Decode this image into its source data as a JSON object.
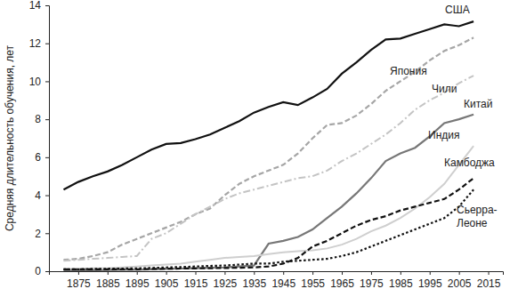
{
  "chart_data": {
    "type": "line",
    "y_label": "Средняя длительность обучения, лет",
    "x": [
      1870,
      1875,
      1880,
      1885,
      1890,
      1895,
      1900,
      1905,
      1910,
      1915,
      1920,
      1925,
      1930,
      1935,
      1940,
      1945,
      1950,
      1955,
      1960,
      1965,
      1970,
      1975,
      1980,
      1985,
      1990,
      1995,
      2000,
      2005,
      2010
    ],
    "xlim": [
      1865,
      2020
    ],
    "xticks": [
      1875,
      1885,
      1895,
      1905,
      1915,
      1925,
      1935,
      1945,
      1955,
      1965,
      1975,
      1985,
      1995,
      2005,
      2015
    ],
    "ylim": [
      0,
      14
    ],
    "yticks": [
      0,
      2,
      4,
      6,
      8,
      10,
      12,
      14
    ],
    "grid": false,
    "series": [
      {
        "name": "США",
        "color": "#111111",
        "line_style": "solid",
        "values": [
          4.3,
          4.7,
          5.0,
          5.25,
          5.6,
          6.0,
          6.4,
          6.7,
          6.75,
          6.95,
          7.2,
          7.55,
          7.9,
          8.35,
          8.65,
          8.9,
          8.75,
          9.15,
          9.6,
          10.4,
          11.0,
          11.65,
          12.2,
          12.25,
          12.5,
          12.75,
          13.0,
          12.9,
          13.15
        ]
      },
      {
        "name": "Япония",
        "color": "#a6a6a6",
        "line_style": "dashed",
        "values": [
          0.6,
          0.65,
          0.8,
          1.0,
          1.4,
          1.7,
          2.0,
          2.3,
          2.6,
          3.0,
          3.3,
          4.0,
          4.6,
          5.0,
          5.3,
          5.6,
          6.2,
          7.0,
          7.7,
          7.8,
          8.2,
          8.8,
          9.5,
          10.0,
          10.5,
          11.1,
          11.6,
          11.9,
          12.3
        ]
      },
      {
        "name": "Чили",
        "color": "#c4c4c4",
        "line_style": "dashdot",
        "values": [
          0.55,
          0.6,
          0.65,
          0.7,
          0.75,
          0.8,
          1.7,
          2.0,
          2.5,
          3.0,
          3.4,
          3.8,
          4.1,
          4.3,
          4.5,
          4.7,
          4.9,
          5.0,
          5.3,
          5.8,
          6.2,
          6.7,
          7.2,
          7.8,
          8.5,
          9.0,
          9.4,
          9.9,
          10.3
        ]
      },
      {
        "name": "Китай",
        "color": "#777777",
        "line_style": "solid",
        "values": [
          0.05,
          0.05,
          0.05,
          0.06,
          0.07,
          0.08,
          0.1,
          0.12,
          0.14,
          0.16,
          0.18,
          0.2,
          0.25,
          0.3,
          1.45,
          1.6,
          1.8,
          2.2,
          2.8,
          3.4,
          4.1,
          4.9,
          5.8,
          6.2,
          6.5,
          7.1,
          7.8,
          8.0,
          8.25
        ]
      },
      {
        "name": "Индия",
        "color": "#cfcfcf",
        "line_style": "solid",
        "values": [
          0.1,
          0.1,
          0.15,
          0.15,
          0.2,
          0.25,
          0.3,
          0.35,
          0.4,
          0.5,
          0.6,
          0.7,
          0.75,
          0.8,
          0.9,
          1.0,
          1.05,
          1.1,
          1.2,
          1.4,
          1.7,
          2.1,
          2.4,
          2.8,
          3.3,
          3.9,
          4.6,
          5.6,
          6.6
        ]
      },
      {
        "name": "Камбоджа",
        "color": "#111111",
        "line_style": "dashed",
        "values": [
          0.1,
          0.1,
          0.1,
          0.1,
          0.1,
          0.1,
          0.12,
          0.13,
          0.14,
          0.15,
          0.16,
          0.17,
          0.18,
          0.2,
          0.25,
          0.4,
          0.7,
          1.3,
          1.6,
          2.0,
          2.4,
          2.7,
          2.9,
          3.2,
          3.4,
          3.6,
          3.8,
          4.3,
          4.9
        ]
      },
      {
        "name": "Сьерра-Леоне",
        "color": "#111111",
        "line_style": "dotted",
        "values": [
          0.1,
          0.1,
          0.12,
          0.13,
          0.14,
          0.15,
          0.17,
          0.2,
          0.22,
          0.25,
          0.28,
          0.3,
          0.35,
          0.4,
          0.4,
          0.5,
          0.55,
          0.6,
          0.65,
          0.8,
          1.0,
          1.3,
          1.6,
          1.9,
          2.2,
          2.5,
          2.8,
          3.4,
          4.3
        ]
      }
    ]
  }
}
